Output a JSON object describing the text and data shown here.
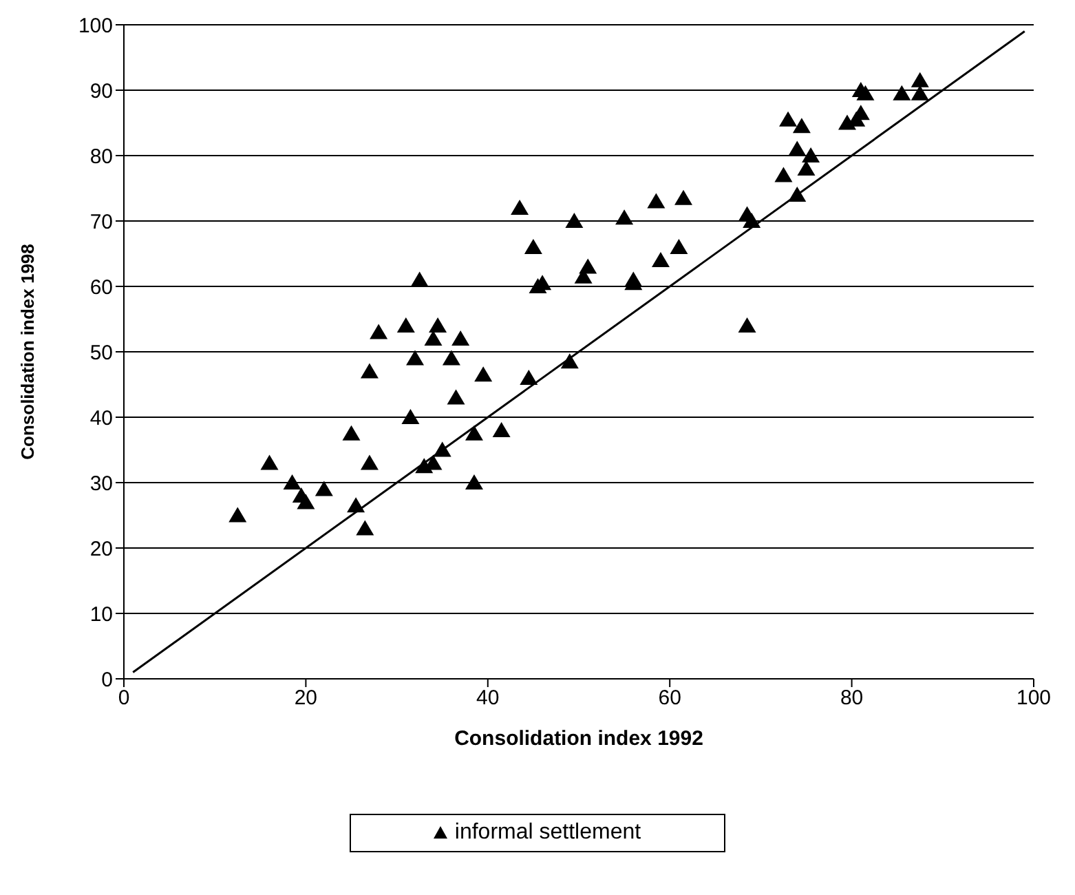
{
  "chart_data": {
    "type": "scatter",
    "xlabel": "Consolidation index 1992",
    "ylabel": "Consolidation index 1998",
    "xlim": [
      0,
      100
    ],
    "xticks": [
      0,
      20,
      40,
      60,
      80,
      100
    ],
    "ylim": [
      0,
      100
    ],
    "yticks": [
      0,
      10,
      20,
      30,
      40,
      50,
      60,
      70,
      80,
      90,
      100
    ],
    "grid": "y",
    "legend": "bottom",
    "marker": "triangle",
    "series": [
      {
        "name": "informal settlement",
        "color": "#000000",
        "x": [
          12.5,
          16,
          18.5,
          19.5,
          20,
          22,
          25,
          25.5,
          26.5,
          27,
          27,
          28,
          31,
          31.5,
          32,
          32.5,
          33,
          34,
          34,
          34.5,
          35,
          36,
          36.5,
          37,
          38.5,
          38.5,
          39.5,
          41.5,
          43.5,
          44.5,
          45,
          45.5,
          46,
          49,
          49.5,
          50.5,
          51,
          55,
          56,
          56,
          58.5,
          59,
          61,
          61.5,
          68.5,
          68.5,
          69,
          72.5,
          73,
          74,
          74,
          74.5,
          75,
          75.5,
          79.5,
          80.5,
          81,
          81,
          81.5,
          85.5,
          87.5,
          87.5
        ],
        "values": [
          25,
          33,
          30,
          28,
          27,
          29,
          37.5,
          26.5,
          23,
          33,
          47,
          53,
          54,
          40,
          49,
          61,
          32.5,
          33,
          52,
          54,
          35,
          49,
          43,
          52,
          37.5,
          30,
          46.5,
          38,
          72,
          46,
          66,
          60,
          60.5,
          48.5,
          70,
          61.5,
          63,
          70.5,
          61,
          60.5,
          73,
          64,
          66,
          73.5,
          71,
          54,
          70,
          77,
          85.5,
          81,
          74,
          84.5,
          78,
          80,
          85,
          85.5,
          90,
          86.5,
          89.5,
          89.5,
          91.5,
          89.5
        ]
      },
      {
        "type": "line",
        "color": "#000000",
        "marker": "none",
        "x": [
          1,
          99
        ],
        "values": [
          1,
          99
        ]
      }
    ]
  }
}
